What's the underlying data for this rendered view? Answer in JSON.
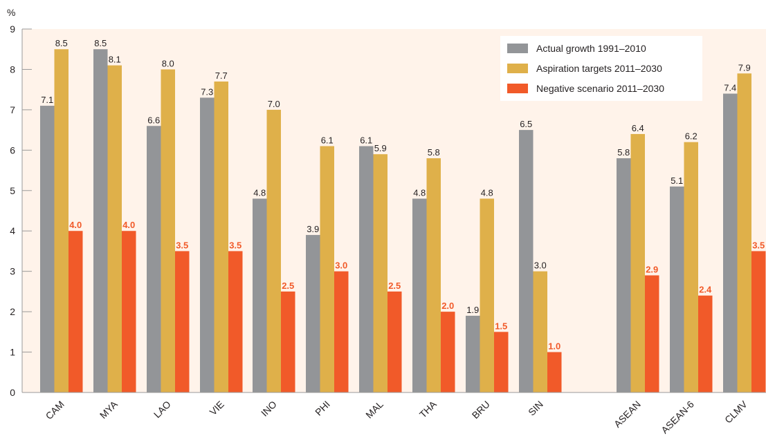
{
  "chart_data": {
    "type": "bar",
    "ylabel": "%",
    "ylim": [
      0,
      9
    ],
    "yticks": [
      0,
      1,
      2,
      3,
      4,
      5,
      6,
      7,
      8,
      9
    ],
    "categories": [
      "CAM",
      "MYA",
      "LAO",
      "VIE",
      "INO",
      "PHI",
      "MAL",
      "THA",
      "BRU",
      "SIN",
      "ASEAN",
      "ASEAN-6",
      "CLMV"
    ],
    "series": [
      {
        "name": "Actual growth 1991–2010",
        "color": "#939598",
        "values": [
          7.1,
          8.5,
          6.6,
          7.3,
          4.8,
          3.9,
          6.1,
          4.8,
          1.9,
          6.5,
          5.8,
          5.1,
          7.4
        ]
      },
      {
        "name": "Aspiration targets 2011–2030",
        "color": "#dfb04a",
        "values": [
          8.5,
          8.1,
          8.0,
          7.7,
          7.0,
          6.1,
          5.9,
          5.8,
          4.8,
          3.0,
          6.4,
          6.2,
          7.9
        ]
      },
      {
        "name": "Negative scenario 2011–2030",
        "color": "#f15a29",
        "values": [
          4.0,
          4.0,
          3.5,
          3.5,
          2.5,
          3.0,
          2.5,
          2.0,
          1.5,
          1.0,
          2.9,
          2.4,
          3.5
        ]
      }
    ],
    "grid": false,
    "legend_position": "top-right",
    "plot_background": "#fff3ea"
  }
}
